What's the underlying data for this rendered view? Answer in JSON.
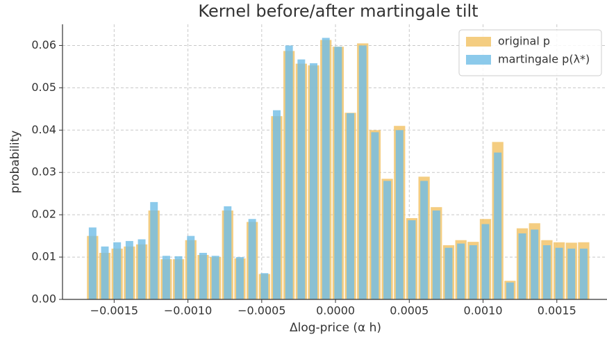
{
  "chart_data": {
    "type": "bar",
    "title": "Kernel before/after martingale tilt",
    "xlabel": "Δlog-price (α h)",
    "ylabel": "probability",
    "x": [
      -0.001646,
      -0.0015628,
      -0.0014796,
      -0.0013964,
      -0.0013132,
      -0.00123,
      -0.0011468,
      -0.0010636,
      -0.0009804,
      -0.0008972,
      -0.000814,
      -0.0007308,
      -0.0006476,
      -0.0005644,
      -0.0004812,
      -0.000398,
      -0.0003148,
      -0.0002316,
      -0.0001484,
      -6.52e-05,
      1.8e-05,
      0.0001012,
      0.0001844,
      0.0002676,
      0.0003508,
      0.000434,
      0.0005172,
      0.0006004,
      0.0006836,
      0.0007668,
      0.00085,
      0.0009332,
      0.0010164,
      0.0010996,
      0.0011828,
      0.001266,
      0.0013492,
      0.0014324,
      0.0015156,
      0.0015988,
      0.001682
    ],
    "series": [
      {
        "name": "original p",
        "color": "#f2c46b",
        "values": [
          0.015,
          0.011,
          0.012,
          0.0125,
          0.013,
          0.021,
          0.0095,
          0.0095,
          0.014,
          0.0105,
          0.01,
          0.021,
          0.0097,
          0.0183,
          0.006,
          0.0433,
          0.0587,
          0.0557,
          0.0553,
          0.0613,
          0.0597,
          0.0441,
          0.0605,
          0.04,
          0.0285,
          0.041,
          0.0192,
          0.029,
          0.0218,
          0.0128,
          0.014,
          0.0136,
          0.019,
          0.0372,
          0.0044,
          0.0168,
          0.018,
          0.014,
          0.0135,
          0.0134,
          0.0135
        ]
      },
      {
        "name": "martingale p(λ*)",
        "color": "#6fbde6",
        "values": [
          0.017,
          0.0125,
          0.0135,
          0.0138,
          0.0142,
          0.023,
          0.0103,
          0.0102,
          0.015,
          0.011,
          0.0103,
          0.022,
          0.01,
          0.019,
          0.0062,
          0.0447,
          0.06,
          0.0567,
          0.0558,
          0.0618,
          0.0597,
          0.044,
          0.06,
          0.0395,
          0.028,
          0.04,
          0.0187,
          0.028,
          0.021,
          0.0122,
          0.0132,
          0.0128,
          0.0178,
          0.0347,
          0.004,
          0.0156,
          0.0165,
          0.0128,
          0.0122,
          0.012,
          0.012
        ]
      }
    ],
    "xlim": [
      -0.00185,
      0.00184
    ],
    "ylim": [
      0,
      0.065
    ],
    "xticks": [
      {
        "value": -0.0015,
        "label": "−0.0015"
      },
      {
        "value": -0.001,
        "label": "−0.0010"
      },
      {
        "value": -0.0005,
        "label": "−0.0005"
      },
      {
        "value": 0,
        "label": "0.0000"
      },
      {
        "value": 0.0005,
        "label": "0.0005"
      },
      {
        "value": 0.001,
        "label": "0.0010"
      },
      {
        "value": 0.0015,
        "label": "0.0015"
      }
    ],
    "yticks": [
      {
        "value": 0,
        "label": "0.00"
      },
      {
        "value": 0.01,
        "label": "0.01"
      },
      {
        "value": 0.02,
        "label": "0.02"
      },
      {
        "value": 0.03,
        "label": "0.03"
      },
      {
        "value": 0.04,
        "label": "0.04"
      },
      {
        "value": 0.05,
        "label": "0.05"
      },
      {
        "value": 0.06,
        "label": "0.06"
      }
    ],
    "grid": true,
    "legend": "upper right"
  }
}
